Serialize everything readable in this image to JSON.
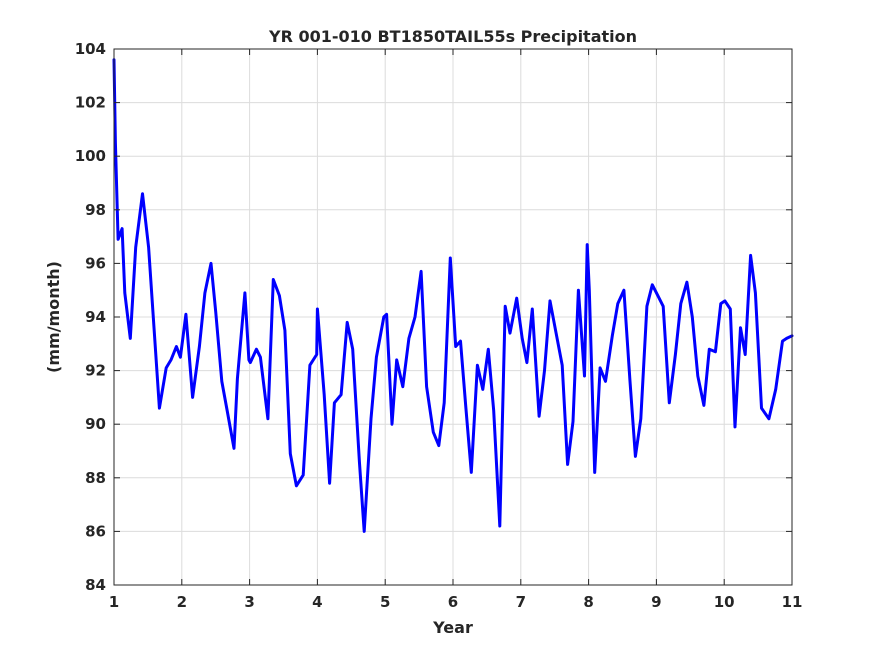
{
  "chart_data": {
    "type": "line",
    "title": "YR 001-010 BT1850TAIL55s Precipitation",
    "xlabel": "Year",
    "ylabel": "(mm/month)",
    "xlim": [
      1,
      11
    ],
    "ylim": [
      84,
      104
    ],
    "xticks": [
      1,
      2,
      3,
      4,
      5,
      6,
      7,
      8,
      9,
      10,
      11
    ],
    "yticks": [
      84,
      86,
      88,
      90,
      92,
      94,
      96,
      98,
      100,
      102,
      104
    ],
    "xtick_labels": [
      "1",
      "2",
      "3",
      "4",
      "5",
      "6",
      "7",
      "8",
      "9",
      "10",
      "11"
    ],
    "ytick_labels": [
      "84",
      "86",
      "88",
      "90",
      "92",
      "94",
      "96",
      "98",
      "100",
      "102",
      "104"
    ],
    "grid": true,
    "line_color": "#0000ff",
    "series": [
      {
        "x": [
          1.0,
          1.02,
          1.06,
          1.12,
          1.16,
          1.24,
          1.32,
          1.42,
          1.51,
          1.59,
          1.67,
          1.77,
          1.84,
          1.92,
          1.98,
          2.06,
          2.16,
          2.26,
          2.34,
          2.43,
          2.5,
          2.59,
          2.67,
          2.77,
          2.82,
          2.93,
          2.99,
          3.01,
          3.1,
          3.16,
          3.27,
          3.35,
          3.44,
          3.52,
          3.6,
          3.69,
          3.79,
          3.89,
          3.99,
          4.0,
          4.1,
          4.18,
          4.25,
          4.35,
          4.44,
          4.52,
          4.62,
          4.69,
          4.79,
          4.87,
          4.98,
          5.02,
          5.1,
          5.17,
          5.26,
          5.35,
          5.44,
          5.53,
          5.61,
          5.71,
          5.79,
          5.87,
          5.96,
          6.04,
          6.11,
          6.19,
          6.27,
          6.36,
          6.44,
          6.52,
          6.6,
          6.69,
          6.77,
          6.84,
          6.94,
          7.02,
          7.09,
          7.17,
          7.27,
          7.35,
          7.43,
          7.52,
          7.61,
          7.69,
          7.77,
          7.85,
          7.94,
          7.98,
          8.01,
          8.09,
          8.17,
          8.25,
          8.35,
          8.43,
          8.52,
          8.61,
          8.69,
          8.77,
          8.86,
          8.94,
          9.02,
          9.1,
          9.19,
          9.28,
          9.36,
          9.45,
          9.53,
          9.61,
          9.7,
          9.78,
          9.87,
          9.95,
          10.01,
          10.09,
          10.16,
          10.24,
          10.31,
          10.39,
          10.46,
          10.55,
          10.66,
          10.76,
          10.86,
          10.92,
          11.0
        ],
        "y": [
          103.6,
          100.5,
          96.9,
          97.3,
          94.9,
          93.2,
          96.6,
          98.6,
          96.6,
          93.6,
          90.6,
          92.1,
          92.4,
          92.9,
          92.5,
          94.1,
          91.0,
          92.9,
          94.9,
          96.0,
          94.2,
          91.6,
          90.5,
          89.1,
          91.7,
          94.9,
          92.4,
          92.3,
          92.8,
          92.5,
          90.2,
          95.4,
          94.8,
          93.5,
          88.9,
          87.7,
          88.1,
          92.2,
          92.6,
          94.3,
          91.1,
          87.8,
          90.8,
          91.1,
          93.8,
          92.8,
          88.6,
          86.0,
          90.2,
          92.5,
          94.0,
          94.1,
          90.0,
          92.4,
          91.4,
          93.2,
          94.0,
          95.7,
          91.4,
          89.7,
          89.2,
          90.8,
          96.2,
          92.9,
          93.1,
          90.6,
          88.2,
          92.2,
          91.3,
          92.8,
          90.5,
          86.2,
          94.4,
          93.4,
          94.7,
          93.2,
          92.3,
          94.3,
          90.3,
          92.0,
          94.6,
          93.4,
          92.2,
          88.5,
          90.1,
          95.0,
          91.8,
          96.7,
          95.0,
          88.2,
          92.1,
          91.6,
          93.3,
          94.5,
          95.0,
          91.6,
          88.8,
          90.2,
          94.4,
          95.2,
          94.8,
          94.4,
          90.8,
          92.6,
          94.5,
          95.3,
          94.0,
          91.8,
          90.7,
          92.8,
          92.7,
          94.5,
          94.6,
          94.3,
          89.9,
          93.6,
          92.6,
          96.3,
          94.9,
          90.6,
          90.2,
          91.3,
          93.1,
          93.2,
          93.3
        ]
      }
    ]
  }
}
